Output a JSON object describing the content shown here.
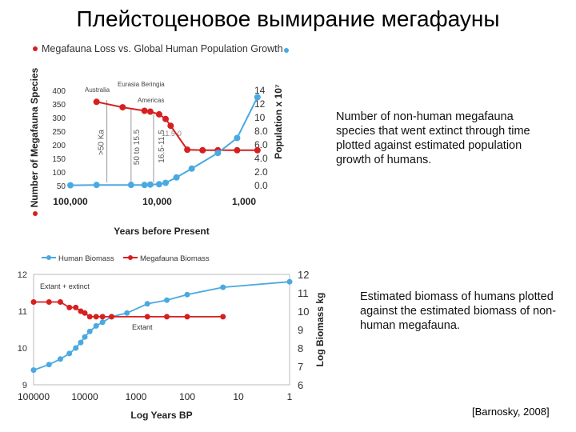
{
  "slide": {
    "title": "Плейстоценовое вымирание мегафауны",
    "caption_1": "Number of non-human megafauna species that went extinct through time plotted against estimated population growth of humans.",
    "caption_2": "Estimated biomass of humans plotted against the estimated biomass of non-human megafauna.",
    "citation": "[Barnosky, 2008]"
  },
  "colors": {
    "human": "#4aa9e0",
    "megafauna": "#d62020",
    "annotation_line": "#999999"
  },
  "chart_data": [
    {
      "type": "line",
      "title": "Megafauna Loss vs. Global Human Population Growth",
      "xlabel": "Years before Present",
      "ylabel_left": "Number of Megafauna Species",
      "ylabel_right": "Population x 10⁷",
      "x_scale": "log",
      "x_reversed": true,
      "xlim": [
        100000,
        1000
      ],
      "x_ticks": [
        "100,000",
        "10,000",
        "1,000"
      ],
      "ylim_left": [
        50,
        400
      ],
      "y_ticks_left": [
        "50",
        "100",
        "150",
        "200",
        "250",
        "300",
        "350",
        "400"
      ],
      "ylim_right": [
        0,
        14
      ],
      "y_ticks_right": [
        "0.0",
        "2.0",
        "4.0",
        "6.0",
        "8.0",
        "10",
        "12",
        "14"
      ],
      "series": [
        {
          "axis": "left",
          "color_key": "megafauna",
          "points": [
            [
              50000,
              358
            ],
            [
              25000,
              338
            ],
            [
              14000,
              325
            ],
            [
              12000,
              322
            ],
            [
              9500,
              312
            ],
            [
              8000,
              295
            ],
            [
              7000,
              270
            ],
            [
              4500,
              182
            ],
            [
              3000,
              180
            ],
            [
              2000,
              180
            ],
            [
              1200,
              180
            ],
            [
              700,
              180
            ]
          ]
        },
        {
          "axis": "right",
          "color_key": "human",
          "points": [
            [
              100000,
              0.05
            ],
            [
              50000,
              0.1
            ],
            [
              20000,
              0.1
            ],
            [
              14000,
              0.1
            ],
            [
              12000,
              0.15
            ],
            [
              9500,
              0.2
            ],
            [
              8000,
              0.4
            ],
            [
              6000,
              1.2
            ],
            [
              4000,
              2.5
            ],
            [
              2000,
              4.8
            ],
            [
              1200,
              7.0
            ],
            [
              700,
              13.0
            ]
          ]
        }
      ],
      "annotations": [
        {
          "text": ">50 Ka",
          "x": 38000
        },
        {
          "text": "50 to 15.5",
          "x": 20000
        },
        {
          "text": "16.5-11.5",
          "x": 11000
        },
        {
          "text": "11.5-0",
          "x": 4500
        },
        {
          "text": "Australia",
          "x": 28000
        },
        {
          "text": "Eurasia Beringia",
          "x": 13000
        },
        {
          "text": "Americas",
          "x": 8000
        }
      ]
    },
    {
      "type": "line",
      "xlabel": "Log Years BP",
      "ylabel_right": "Log Biomass kg",
      "x_scale": "log",
      "x_reversed": true,
      "xlim": [
        100000,
        1
      ],
      "x_ticks": [
        "100000",
        "10000",
        "1000",
        "100",
        "10",
        "1"
      ],
      "ylim_left": [
        9,
        12
      ],
      "y_ticks_left": [
        "9",
        "10",
        "11",
        "12"
      ],
      "ylim_right": [
        6,
        12
      ],
      "y_ticks_right": [
        "6",
        "7",
        "8",
        "9",
        "10",
        "11",
        "12"
      ],
      "legend": [
        "Human Biomass",
        "Megafauna Biomass"
      ],
      "legend_position": "top",
      "series": [
        {
          "name": "Human Biomass",
          "color_key": "human",
          "axis": "left",
          "points": [
            [
              100000,
              9.4
            ],
            [
              50000,
              9.55
            ],
            [
              30000,
              9.7
            ],
            [
              20000,
              9.85
            ],
            [
              15000,
              10.0
            ],
            [
              12000,
              10.15
            ],
            [
              10000,
              10.3
            ],
            [
              8000,
              10.45
            ],
            [
              6000,
              10.6
            ],
            [
              4500,
              10.7
            ],
            [
              3000,
              10.85
            ],
            [
              1500,
              10.95
            ],
            [
              600,
              11.2
            ],
            [
              250,
              11.3
            ],
            [
              100,
              11.45
            ],
            [
              20,
              11.65
            ],
            [
              1,
              11.8
            ]
          ]
        },
        {
          "name": "Megafauna Biomass",
          "color_key": "megafauna",
          "axis": "left",
          "points": [
            [
              100000,
              11.25
            ],
            [
              50000,
              11.25
            ],
            [
              30000,
              11.25
            ],
            [
              20000,
              11.1
            ],
            [
              15000,
              11.1
            ],
            [
              12000,
              11.0
            ],
            [
              10000,
              10.95
            ],
            [
              8000,
              10.85
            ],
            [
              6000,
              10.85
            ],
            [
              4500,
              10.85
            ],
            [
              3000,
              10.85
            ],
            [
              600,
              10.85
            ],
            [
              250,
              10.85
            ],
            [
              100,
              10.85
            ],
            [
              20,
              10.85
            ]
          ]
        }
      ],
      "annotations": [
        {
          "text": "Extant + extinct"
        },
        {
          "text": "Extant"
        }
      ]
    }
  ]
}
